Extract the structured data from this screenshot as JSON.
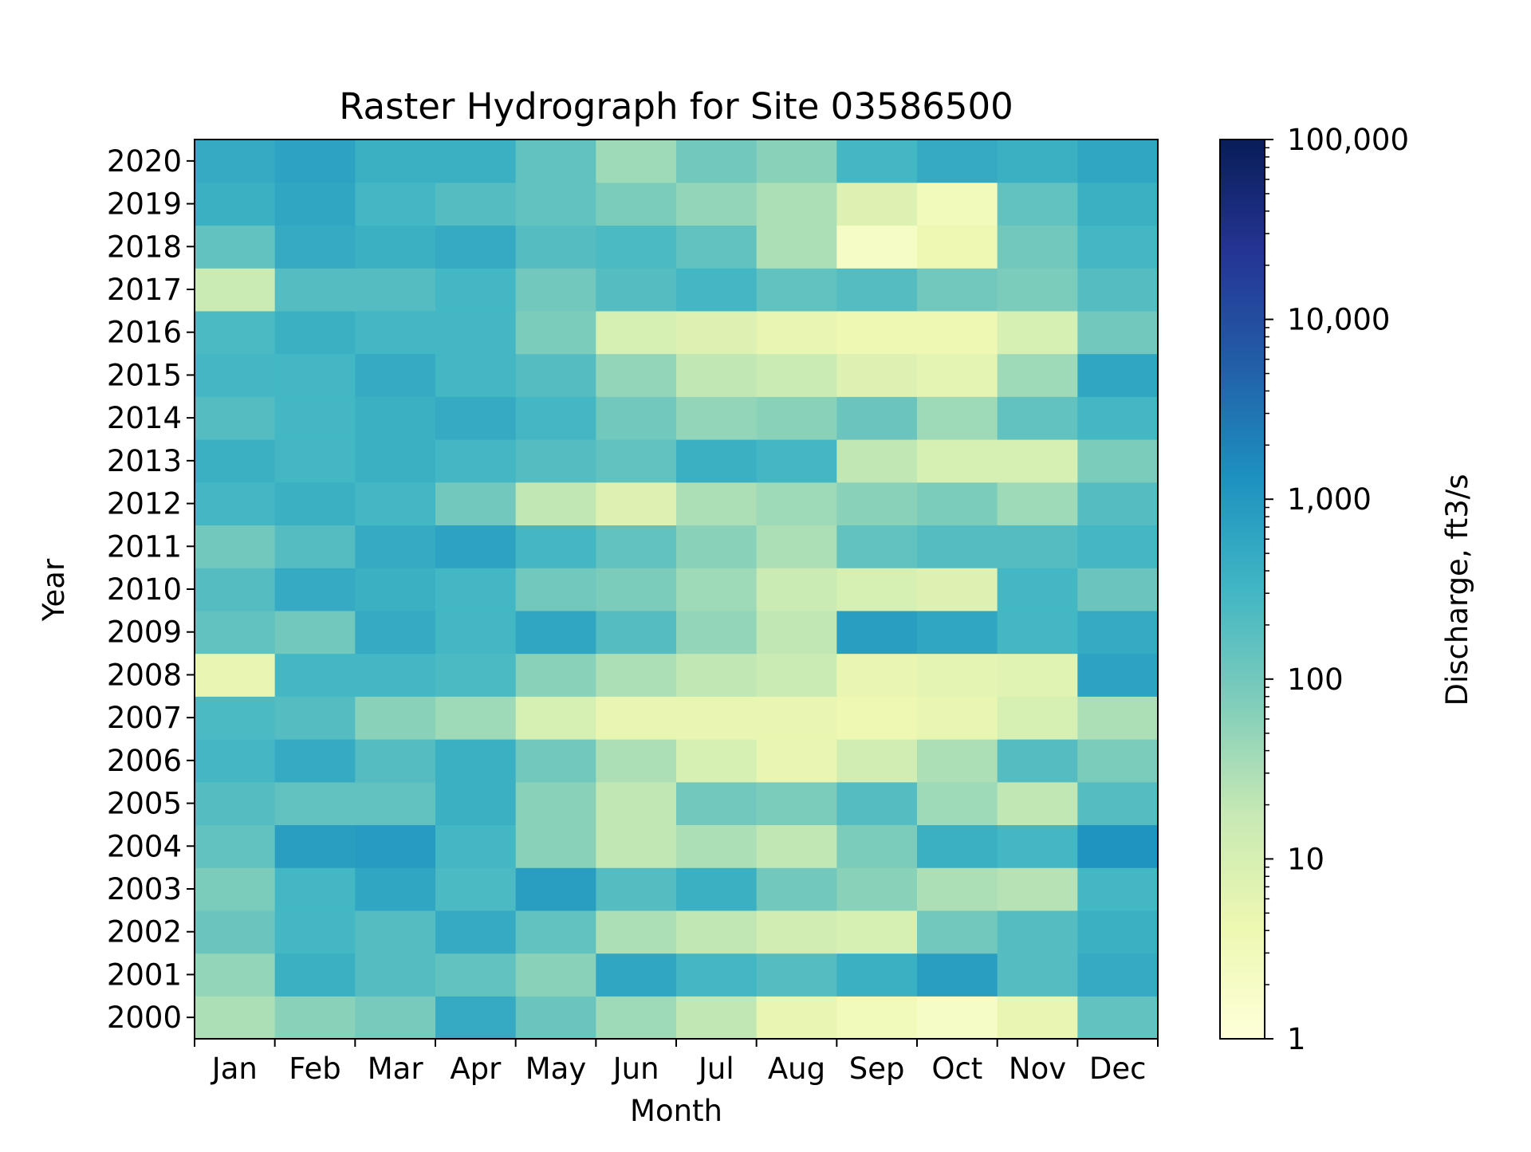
{
  "chart_data": {
    "type": "heatmap",
    "title": "Raster Hydrograph for Site 03586500",
    "xlabel": "Month",
    "ylabel": "Year",
    "colorbar_label": "Discharge, ft3/s",
    "scale": "log",
    "colormap": "YlGnBu",
    "colormap_stops": [
      "#ffffd9",
      "#edf8b1",
      "#c7e9b4",
      "#7fcdbb",
      "#41b6c4",
      "#1d91c0",
      "#225ea8",
      "#253494",
      "#081d58"
    ],
    "value_range": [
      1,
      100000
    ],
    "colorbar_ticks": [
      {
        "value": 1,
        "label": "1"
      },
      {
        "value": 10,
        "label": "10"
      },
      {
        "value": 100,
        "label": "100"
      },
      {
        "value": 1000,
        "label": "1,000"
      },
      {
        "value": 10000,
        "label": "10,000"
      },
      {
        "value": 100000,
        "label": "100,000"
      }
    ],
    "months": [
      "Jan",
      "Feb",
      "Mar",
      "Apr",
      "May",
      "Jun",
      "Jul",
      "Aug",
      "Sep",
      "Oct",
      "Nov",
      "Dec"
    ],
    "years": [
      "2000",
      "2001",
      "2002",
      "2003",
      "2004",
      "2005",
      "2006",
      "2007",
      "2008",
      "2009",
      "2010",
      "2011",
      "2012",
      "2013",
      "2014",
      "2015",
      "2016",
      "2017",
      "2018",
      "2019",
      "2020"
    ],
    "monthly_discharge_ft3s": {
      "2000": [
        30,
        60,
        90,
        500,
        120,
        40,
        20,
        5,
        3,
        2,
        5,
        150
      ],
      "2001": [
        50,
        400,
        200,
        150,
        60,
        600,
        300,
        200,
        400,
        800,
        200,
        500
      ],
      "2002": [
        120,
        300,
        200,
        500,
        150,
        30,
        20,
        12,
        10,
        100,
        200,
        400
      ],
      "2003": [
        80,
        300,
        600,
        250,
        800,
        200,
        400,
        100,
        60,
        30,
        25,
        300
      ],
      "2004": [
        150,
        800,
        900,
        300,
        60,
        20,
        30,
        20,
        80,
        400,
        300,
        1200
      ],
      "2005": [
        200,
        150,
        150,
        400,
        60,
        20,
        100,
        80,
        200,
        40,
        20,
        200
      ],
      "2006": [
        300,
        500,
        200,
        400,
        100,
        30,
        10,
        5,
        12,
        30,
        200,
        80
      ],
      "2007": [
        250,
        200,
        60,
        40,
        10,
        5,
        5,
        5,
        4,
        5,
        10,
        30
      ],
      "2008": [
        5,
        300,
        300,
        250,
        60,
        30,
        20,
        15,
        5,
        6,
        7,
        700
      ],
      "2009": [
        150,
        100,
        500,
        300,
        600,
        200,
        50,
        20,
        800,
        600,
        300,
        500
      ],
      "2010": [
        200,
        500,
        400,
        300,
        100,
        80,
        40,
        15,
        10,
        8,
        300,
        120
      ],
      "2011": [
        100,
        200,
        500,
        700,
        300,
        150,
        60,
        30,
        150,
        200,
        200,
        300
      ],
      "2012": [
        300,
        400,
        300,
        100,
        20,
        8,
        30,
        40,
        60,
        80,
        40,
        200
      ],
      "2013": [
        400,
        300,
        400,
        300,
        200,
        150,
        400,
        300,
        20,
        10,
        10,
        80
      ],
      "2014": [
        200,
        300,
        400,
        500,
        300,
        100,
        50,
        60,
        120,
        40,
        150,
        300
      ],
      "2015": [
        300,
        300,
        500,
        300,
        200,
        50,
        20,
        15,
        8,
        6,
        40,
        600
      ],
      "2016": [
        250,
        400,
        300,
        300,
        80,
        10,
        8,
        5,
        4,
        4,
        10,
        100
      ],
      "2017": [
        15,
        200,
        200,
        300,
        100,
        200,
        300,
        150,
        200,
        100,
        80,
        200
      ],
      "2018": [
        150,
        500,
        400,
        500,
        200,
        250,
        150,
        30,
        2,
        4,
        100,
        300
      ],
      "2019": [
        400,
        600,
        300,
        200,
        150,
        80,
        50,
        30,
        8,
        3,
        150,
        400
      ],
      "2020": [
        500,
        700,
        400,
        400,
        150,
        40,
        100,
        60,
        300,
        500,
        400,
        600
      ]
    }
  }
}
